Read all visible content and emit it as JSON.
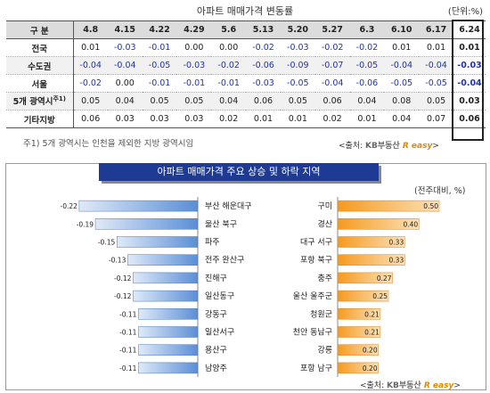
{
  "table": {
    "title": "아파트 매매가격 변동률",
    "unit": "(단위:%)",
    "header_label": "구    분",
    "dates": [
      "4.8",
      "4.15",
      "4.22",
      "4.29",
      "5.6",
      "5.13",
      "5.20",
      "5.27",
      "6.3",
      "6.10",
      "6.17",
      "6.24"
    ],
    "rows": [
      {
        "name": "전국",
        "values": [
          "0.01",
          "-0.03",
          "-0.01",
          "0.00",
          "0.00",
          "-0.02",
          "-0.03",
          "-0.02",
          "-0.02",
          "0.01",
          "0.01",
          "0.01"
        ]
      },
      {
        "name": "수도권",
        "values": [
          "-0.04",
          "-0.04",
          "-0.05",
          "-0.03",
          "-0.02",
          "-0.06",
          "-0.09",
          "-0.07",
          "-0.05",
          "-0.04",
          "-0.04",
          "-0.03"
        ]
      },
      {
        "name": "서울",
        "values": [
          "-0.02",
          "0.00",
          "-0.01",
          "-0.01",
          "-0.01",
          "-0.03",
          "-0.05",
          "-0.04",
          "-0.06",
          "-0.05",
          "-0.05",
          "-0.04"
        ]
      },
      {
        "name": "5개  광역시",
        "sup": "주1)",
        "values": [
          "0.05",
          "0.04",
          "0.05",
          "0.05",
          "0.04",
          "0.06",
          "0.05",
          "0.06",
          "0.04",
          "0.08",
          "0.05",
          "0.03"
        ]
      },
      {
        "name": "기타지방",
        "values": [
          "0.06",
          "0.03",
          "0.03",
          "0.03",
          "0.02",
          "0.01",
          "0.01",
          "0.02",
          "0.01",
          "0.04",
          "0.07",
          "0.06"
        ]
      }
    ],
    "note": "주1) 5개 광역시는 인천을 제외한 지방 광역시임",
    "source_label": "<출처:",
    "source_brand_prefix": "KB부동산",
    "source_brand": "R easy",
    "source_close": ">"
  },
  "chart_title": "아파트 매매가격 주요 상승 및 하락 지역",
  "chart_unit": "(전주대비, %)",
  "chart_source_label": "<출처:",
  "chart_source_brand_prefix": "KB부동산",
  "chart_source_brand": "R easy",
  "chart_source_close": ">",
  "colors": {
    "decline_bar": "#5b8ed6",
    "rise_bar": "#f59a1e",
    "title_bg": "#1f3a93",
    "negative_text": "#2233aa"
  },
  "chart_data": [
    {
      "type": "bar",
      "orientation": "horizontal",
      "name": "하락 지역",
      "categories": [
        "부산 해운대구",
        "울산 북구",
        "파주",
        "전주 완산구",
        "진해구",
        "일산동구",
        "강동구",
        "일산서구",
        "용산구",
        "남양주"
      ],
      "values": [
        -0.22,
        -0.19,
        -0.15,
        -0.13,
        -0.12,
        -0.12,
        -0.11,
        -0.11,
        -0.11,
        -0.11
      ],
      "value_labels": [
        "-0.22",
        "-0.19",
        "-0.15",
        "-0.13",
        "-0.12",
        "-0.12",
        "-0.11",
        "-0.11",
        "-0.11",
        "-0.11"
      ]
    },
    {
      "type": "bar",
      "orientation": "horizontal",
      "name": "상승 지역",
      "categories": [
        "구미",
        "경산",
        "대구 서구",
        "포항 북구",
        "충주",
        "울산 울주군",
        "청원군",
        "천안 동남구",
        "강릉",
        "포항 남구"
      ],
      "values": [
        0.5,
        0.4,
        0.33,
        0.33,
        0.27,
        0.25,
        0.21,
        0.21,
        0.2,
        0.2
      ],
      "value_labels": [
        "0.50",
        "0.40",
        "0.33",
        "0.33",
        "0.27",
        "0.25",
        "0.21",
        "0.21",
        "0.20",
        "0.20"
      ]
    }
  ]
}
